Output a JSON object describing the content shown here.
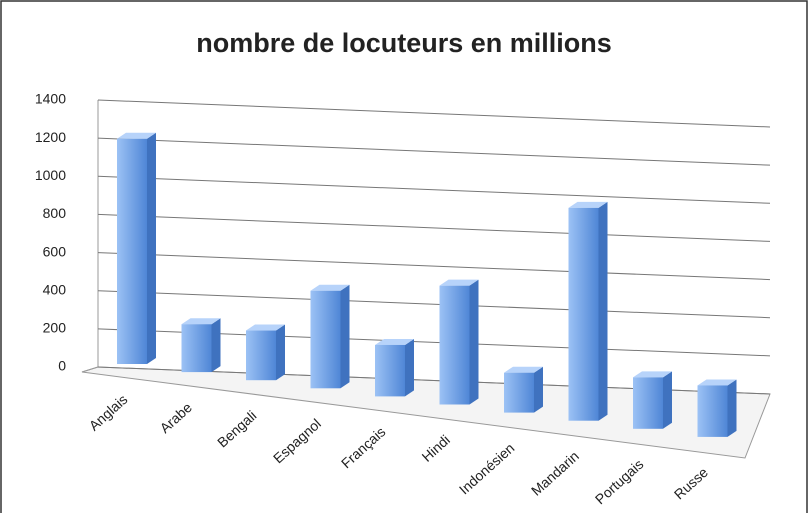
{
  "chart_data": {
    "type": "bar3d",
    "title": "nombre de locuteurs en millions",
    "categories": [
      "Anglais",
      "Arabe",
      "Bengali",
      "Espagnol",
      "Français",
      "Hindi",
      "Indonésien",
      "Mandarin",
      "Portugais",
      "Russe"
    ],
    "values": [
      1270,
      270,
      280,
      550,
      290,
      670,
      225,
      1200,
      290,
      290
    ],
    "color": "#5b8fd9",
    "ylim": [
      0,
      1400
    ],
    "yticks": [
      0,
      200,
      400,
      600,
      800,
      1000,
      1200,
      1400
    ],
    "grid": true
  }
}
